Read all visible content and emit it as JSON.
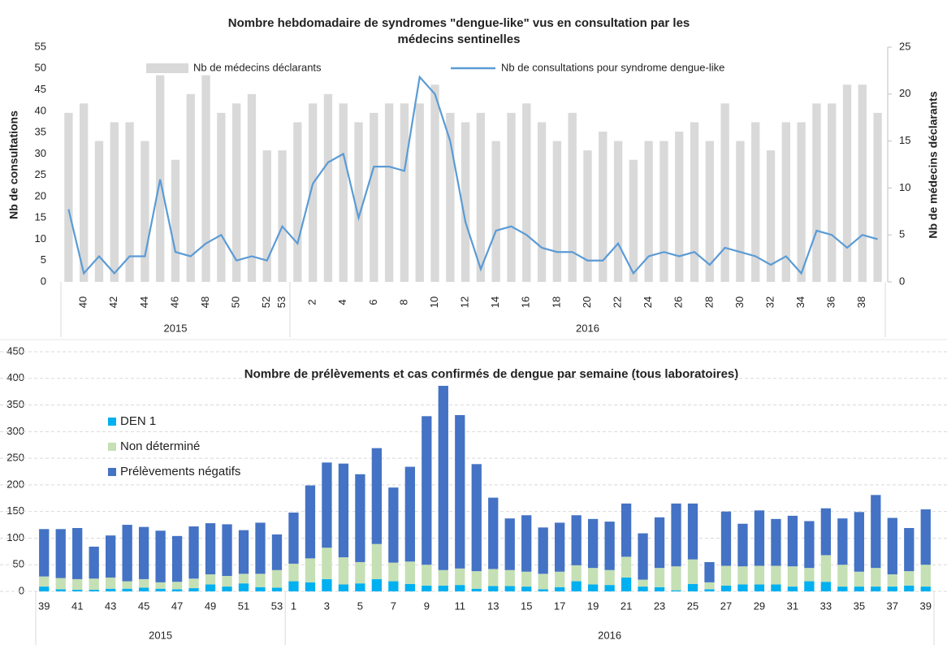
{
  "chart_data": [
    {
      "type": "combo",
      "title": [
        "Nombre hebdomadaire de syndromes \"dengue-like\" vus en consultation par  les",
        "médecins sentinelles"
      ],
      "ylabel": "Nb de consultations",
      "y2label": "Nb de médecins déclarants",
      "categories": [
        null,
        "40",
        null,
        "42",
        null,
        "44",
        null,
        "46",
        null,
        "48",
        null,
        "50",
        null,
        "52",
        "53",
        null,
        "2",
        null,
        "4",
        null,
        "6",
        null,
        "8",
        null,
        "10",
        null,
        "12",
        null,
        "14",
        null,
        "16",
        null,
        "18",
        null,
        "20",
        null,
        "22",
        null,
        "24",
        null,
        "26",
        null,
        "28",
        null,
        "30",
        null,
        "32",
        null,
        "34",
        null,
        "36",
        null,
        "38",
        null
      ],
      "groups": [
        "2015",
        "2016"
      ],
      "ylim": [
        0,
        55
      ],
      "yticks": [
        0,
        5,
        10,
        15,
        20,
        25,
        30,
        35,
        40,
        45,
        50,
        55
      ],
      "y2lim": [
        0,
        25
      ],
      "y2ticks": [
        0,
        5,
        10,
        15,
        20,
        25
      ],
      "series": [
        {
          "name": "Nb de médecins déclarants",
          "type": "bar",
          "axis": "y2",
          "color": "#d9d9d9",
          "values": [
            18,
            19,
            15,
            17,
            17,
            15,
            22,
            13,
            20,
            22,
            18,
            19,
            20,
            14,
            14,
            17,
            19,
            20,
            19,
            17,
            18,
            19,
            19,
            19,
            21,
            18,
            17,
            18,
            15,
            18,
            19,
            17,
            15,
            18,
            14,
            16,
            15,
            13,
            15,
            15,
            16,
            17,
            15,
            19,
            15,
            17,
            14,
            17,
            17,
            19,
            19,
            21,
            21,
            18
          ]
        },
        {
          "name": "Nb de consultations pour syndrome dengue-like",
          "type": "line",
          "color": "#5b9bd5",
          "values": [
            17,
            2,
            6,
            2,
            6,
            6,
            24,
            7,
            6,
            9,
            11,
            5,
            6,
            5,
            13,
            9,
            23,
            28,
            30,
            15,
            27,
            27,
            26,
            48,
            44,
            33,
            14,
            3,
            12,
            13,
            11,
            8,
            7,
            7,
            5,
            5,
            9,
            2,
            6,
            7,
            6,
            7,
            4,
            8,
            7,
            6,
            4,
            6,
            2,
            12,
            11,
            8,
            11,
            10
          ]
        }
      ]
    },
    {
      "type": "stackedbar",
      "title": "Nombre de prélèvements et cas confirmés de dengue par semaine (tous laboratoires)",
      "categories": [
        "39",
        null,
        "41",
        null,
        "43",
        null,
        "45",
        null,
        "47",
        null,
        "49",
        null,
        "51",
        null,
        "53",
        "1",
        null,
        "3",
        null,
        "5",
        null,
        "7",
        null,
        "9",
        null,
        "11",
        null,
        "13",
        null,
        "15",
        null,
        "17",
        null,
        "19",
        null,
        "21",
        null,
        "23",
        null,
        "25",
        null,
        "27",
        null,
        "29",
        null,
        "31",
        null,
        "33",
        null,
        "35",
        null,
        "37",
        null,
        "39"
      ],
      "groups": [
        "2015",
        "2016"
      ],
      "ylim": [
        0,
        450
      ],
      "yticks": [
        0,
        50,
        100,
        150,
        200,
        250,
        300,
        350,
        400,
        450
      ],
      "grid": true,
      "series": [
        {
          "name": "DEN 1",
          "color": "#00b0f0",
          "values": [
            9,
            4,
            3,
            3,
            5,
            5,
            7,
            5,
            4,
            6,
            13,
            9,
            15,
            8,
            7,
            19,
            17,
            23,
            13,
            15,
            23,
            19,
            14,
            11,
            11,
            12,
            5,
            10,
            10,
            9,
            4,
            8,
            19,
            13,
            12,
            26,
            9,
            8,
            2,
            14,
            4,
            11,
            13,
            13,
            13,
            9,
            19,
            18,
            9,
            9,
            9,
            9,
            11,
            9
          ]
        },
        {
          "name": "Non déterminé",
          "color": "#c5e0b4",
          "values": [
            19,
            21,
            20,
            21,
            21,
            14,
            16,
            12,
            14,
            18,
            19,
            20,
            18,
            25,
            33,
            33,
            45,
            59,
            51,
            40,
            66,
            35,
            42,
            39,
            29,
            31,
            33,
            32,
            30,
            28,
            29,
            29,
            30,
            31,
            28,
            39,
            13,
            36,
            45,
            46,
            13,
            37,
            34,
            35,
            35,
            38,
            25,
            50,
            41,
            28,
            35,
            23,
            27,
            41
          ]
        },
        {
          "name": "Prélèvements négatifs",
          "color": "#4472c4",
          "values": [
            89,
            92,
            96,
            60,
            79,
            106,
            98,
            97,
            86,
            98,
            96,
            97,
            82,
            96,
            67,
            96,
            137,
            160,
            176,
            165,
            180,
            141,
            178,
            279,
            346,
            288,
            201,
            134,
            97,
            106,
            87,
            92,
            94,
            92,
            91,
            100,
            87,
            95,
            118,
            105,
            38,
            102,
            80,
            104,
            88,
            95,
            88,
            88,
            87,
            112,
            137,
            106,
            81,
            104
          ]
        }
      ]
    }
  ]
}
